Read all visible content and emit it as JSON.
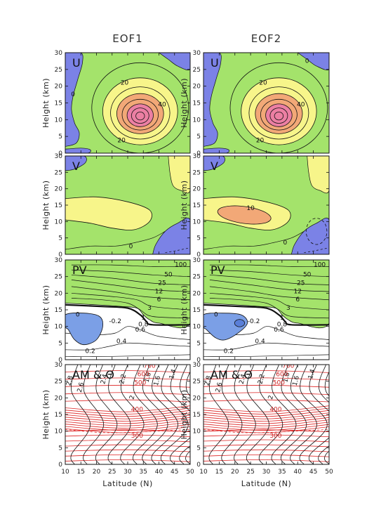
{
  "figure": {
    "columns": [
      "EOF1",
      "EOF2"
    ],
    "xlabel": "Latitude (N)",
    "ylabel": "Height (km)",
    "x_ticks": [
      "10",
      "15",
      "20",
      "25",
      "30",
      "35",
      "40",
      "45",
      "50"
    ],
    "y_ticks": [
      "0",
      "5",
      "10",
      "15",
      "20",
      "25",
      "30"
    ]
  },
  "chart_data": [
    {
      "type": "heatmap",
      "panel": "U",
      "label": "U",
      "xlim": [
        10,
        50
      ],
      "ylim": [
        0,
        30
      ],
      "contour_labels": [
        "0",
        "20",
        "40",
        "20"
      ],
      "colors": {
        "negative": "#7b82e6",
        "low": "#a4e36b",
        "mid": "#f7f58a",
        "high": "#f2a877",
        "max": "#ec7fa3"
      }
    },
    {
      "type": "heatmap",
      "panel": "V",
      "label": "V",
      "xlim": [
        10,
        50
      ],
      "ylim": [
        0,
        30
      ],
      "contour_labels": [
        "0",
        "10"
      ],
      "colors": {
        "negative": "#7b82e6",
        "low": "#a4e36b",
        "mid": "#f7f58a",
        "high": "#f2a877"
      }
    },
    {
      "type": "heatmap",
      "panel": "PV",
      "label": "PV",
      "xlim": [
        10,
        50
      ],
      "ylim": [
        0,
        30
      ],
      "contour_labels": [
        "100",
        "50",
        "25",
        "12",
        "6",
        "3",
        "1",
        "0.8",
        "0.6",
        "0.4",
        "0.2",
        "0",
        "-0.2"
      ],
      "colors": {
        "negative": "#7b9fe6",
        "positive": "#a4e36b"
      }
    },
    {
      "type": "line",
      "panel": "AM & Θ",
      "label": "AM & Θ",
      "xlim": [
        10,
        50
      ],
      "ylim": [
        0,
        30
      ],
      "black_contour_labels": [
        "2.8",
        "2.6",
        "2.4",
        "2.2",
        "2",
        "1.8",
        "1.6",
        "1.4"
      ],
      "red_contour_labels": [
        "700",
        "600",
        "500",
        "400",
        "300"
      ],
      "colors": {
        "am": "#111111",
        "theta": "#dd2222"
      }
    }
  ]
}
